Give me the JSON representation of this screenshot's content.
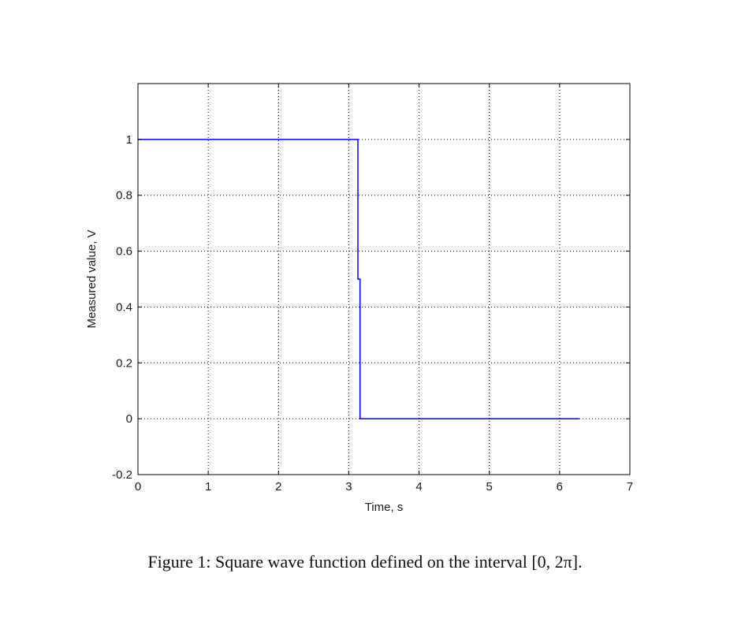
{
  "caption": {
    "label": "Figure 1:",
    "text": "Square wave function defined on the interval [0, 2π]."
  },
  "chart_data": {
    "type": "line",
    "xlabel": "Time, s",
    "ylabel": "Measured value, V",
    "xlim": [
      0,
      7
    ],
    "ylim": [
      -0.2,
      1.2
    ],
    "xticks": [
      0,
      1,
      2,
      3,
      4,
      5,
      6,
      7
    ],
    "yticks": [
      -0.2,
      0,
      0.2,
      0.4,
      0.6,
      0.8,
      1
    ],
    "xtick_labels": [
      "0",
      "1",
      "2",
      "3",
      "4",
      "5",
      "6",
      "7"
    ],
    "ytick_labels": [
      "-0.2",
      "0",
      "0.2",
      "0.4",
      "0.6",
      "0.8",
      "1"
    ],
    "grid": true,
    "line_color": "#0000ff",
    "series": [
      {
        "x": [
          0,
          3.13,
          3.13,
          3.16,
          3.16,
          6.28
        ],
        "y": [
          1,
          1,
          0.5,
          0.5,
          0,
          0
        ]
      }
    ]
  }
}
